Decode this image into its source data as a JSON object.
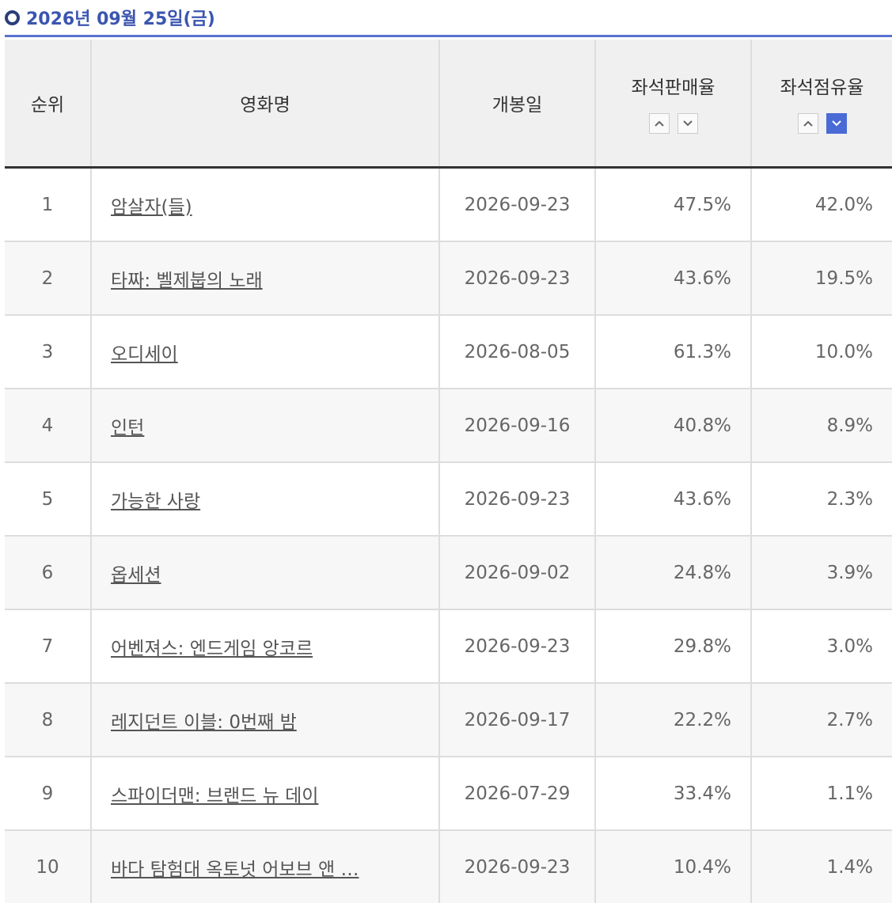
{
  "header": {
    "title": "2026년 09월 25일(금)"
  },
  "table": {
    "columns": [
      "순위",
      "영화명",
      "개봉일",
      "좌석판매율",
      "좌석점유율"
    ],
    "rows": [
      [
        1,
        "암살자(들)",
        "2026-09-23",
        "47.5%",
        "42.0%"
      ],
      [
        2,
        "타짜: 벨제붑의 노래",
        "2026-09-23",
        "43.6%",
        "19.5%"
      ],
      [
        3,
        "오디세이",
        "2026-08-05",
        "61.3%",
        "10.0%"
      ],
      [
        4,
        "인턴",
        "2026-09-16",
        "40.8%",
        "8.9%"
      ],
      [
        5,
        "가능한 사랑",
        "2026-09-23",
        "43.6%",
        "2.3%"
      ],
      [
        6,
        "옵세션",
        "2026-09-02",
        "24.8%",
        "3.9%"
      ],
      [
        7,
        "어벤져스: 엔드게임 앙코르",
        "2026-09-23",
        "29.8%",
        "3.0%"
      ],
      [
        8,
        "레지던트 이블: 0번째 밤",
        "2026-09-17",
        "22.2%",
        "2.7%"
      ],
      [
        9,
        "스파이더맨: 브랜드 뉴 데이",
        "2026-07-29",
        "33.4%",
        "1.1%"
      ],
      [
        10,
        "바다 탐험대 옥토넛 어보브 앤 …",
        "2026-09-23",
        "10.4%",
        "1.4%"
      ]
    ]
  }
}
